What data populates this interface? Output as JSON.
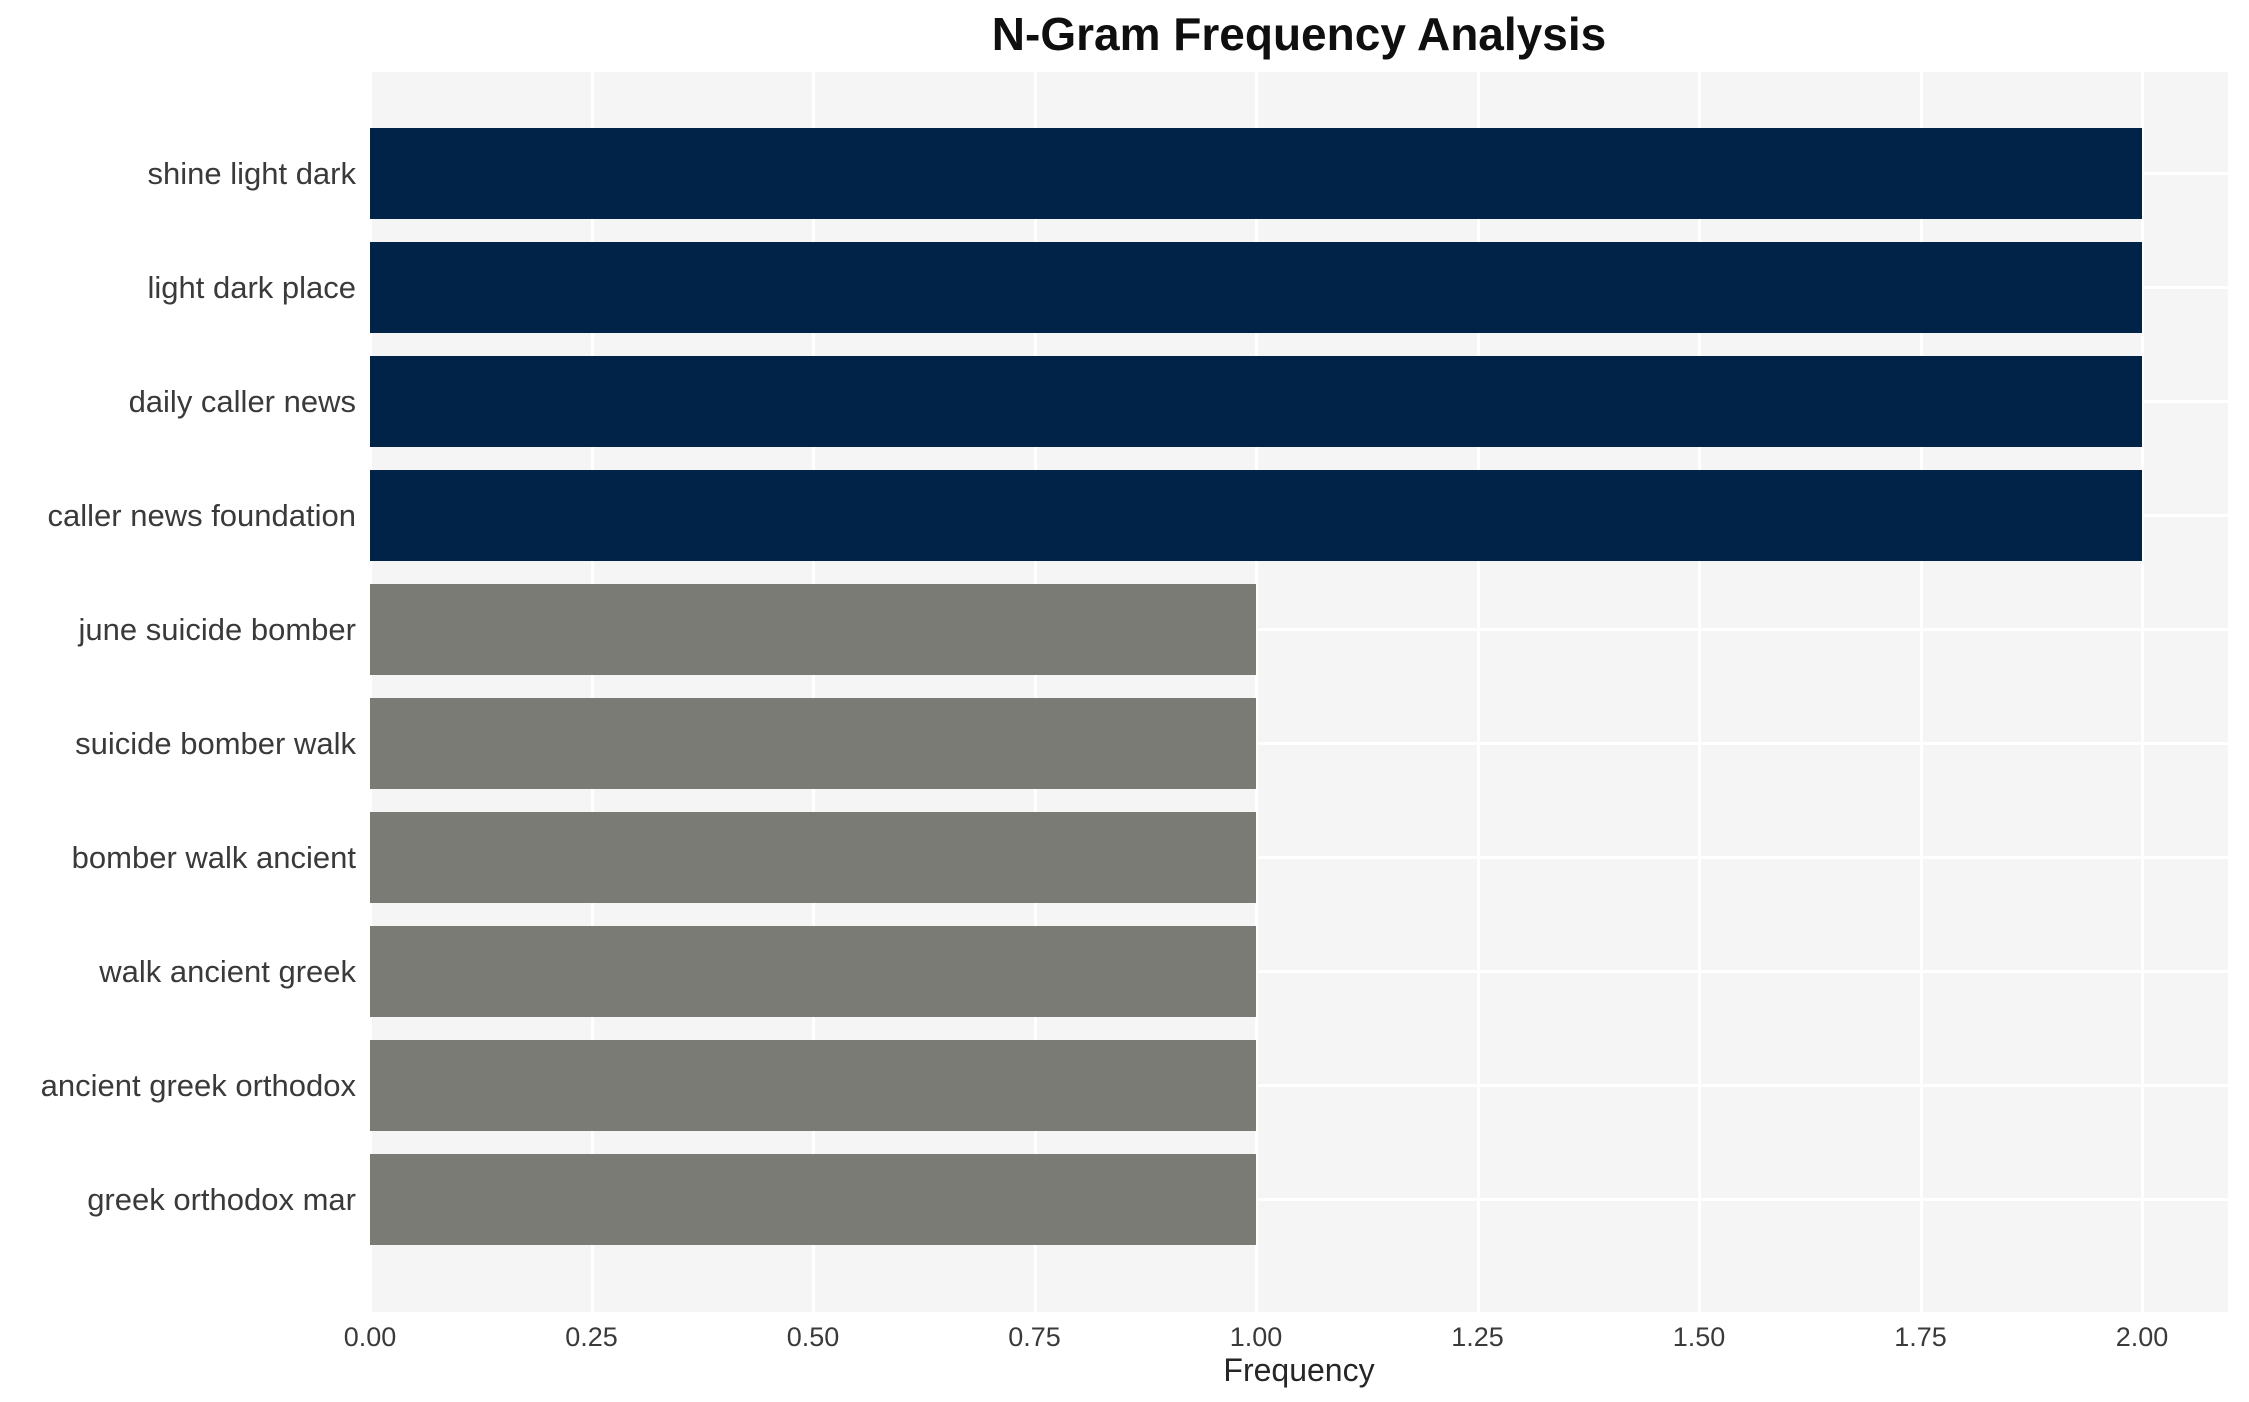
{
  "chart_data": {
    "type": "bar",
    "orientation": "horizontal",
    "title": "N-Gram Frequency Analysis",
    "xlabel": "Frequency",
    "ylabel": "",
    "categories": [
      "shine light dark",
      "light dark place",
      "daily caller news",
      "caller news foundation",
      "june suicide bomber",
      "suicide bomber walk",
      "bomber walk ancient",
      "walk ancient greek",
      "ancient greek orthodox",
      "greek orthodox mar"
    ],
    "values": [
      2,
      2,
      2,
      2,
      1,
      1,
      1,
      1,
      1,
      1
    ],
    "bar_colors": [
      "#022348",
      "#022348",
      "#022348",
      "#022348",
      "#7b7b76",
      "#7b7b76",
      "#7b7b76",
      "#7b7b76",
      "#7b7b76",
      "#7b7b76"
    ],
    "xtick_labels": [
      "0.00",
      "0.25",
      "0.50",
      "0.75",
      "1.00",
      "1.25",
      "1.50",
      "1.75",
      "2.00"
    ],
    "xtick_values": [
      0,
      0.25,
      0.5,
      0.75,
      1.0,
      1.25,
      1.5,
      1.75,
      2.0
    ],
    "xlim": [
      0,
      2.1
    ],
    "legend": "none",
    "grid": {
      "vertical_lines_at_ticks": true,
      "horizontal_lines_at_bar_centers": true,
      "line_color": "#ffffff"
    },
    "colors": {
      "bar_frequency_2": "#022348",
      "bar_frequency_1": "#7b7b76",
      "plot_background": "#f5f5f6",
      "page_background": "#ffffff",
      "grid_line": "#ffffff",
      "tick_text": "#3a3a3a",
      "title_text": "#0f0f0f"
    }
  }
}
